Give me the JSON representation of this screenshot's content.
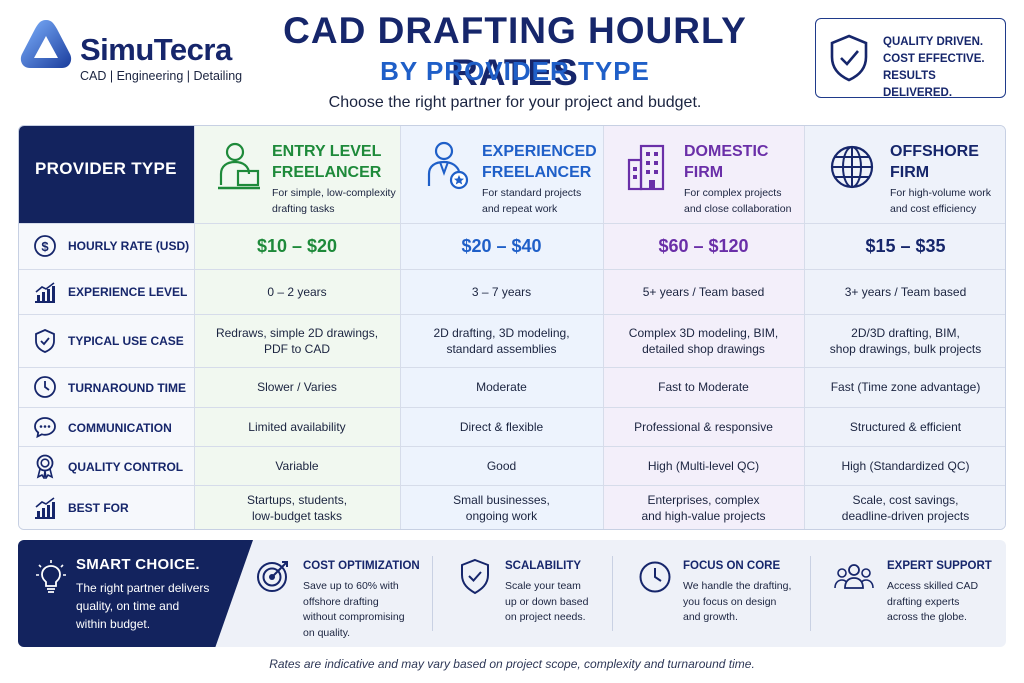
{
  "brand": {
    "name": "SimuTecra",
    "tagline": "CAD | Engineering | Detailing",
    "logo_icon": "triangle-loop-logo"
  },
  "header": {
    "title_line1": "CAD DRAFTING HOURLY RATES",
    "title_line2": "BY PROVIDER TYPE",
    "subtitle": "Choose the right partner for your project and budget."
  },
  "badge": {
    "icon": "shield-check-icon",
    "line1": "QUALITY DRIVEN.",
    "line2": "COST EFFECTIVE.",
    "line3": "RESULTS DELIVERED."
  },
  "colors": {
    "navy": "#13235e",
    "blue": "#1f5fc8",
    "green": "#1e8a3a",
    "purple": "#6a2fa8"
  },
  "table": {
    "corner_label": "PROVIDER TYPE",
    "columns": [
      {
        "name_line1": "ENTRY LEVEL",
        "name_line2": "FREELANCER",
        "desc_line1": "For simple, low-complexity",
        "desc_line2": "drafting tasks",
        "icon": "laptop-person-icon",
        "color": "#1e8a3a"
      },
      {
        "name_line1": "EXPERIENCED",
        "name_line2": "FREELANCER",
        "desc_line1": "For standard projects",
        "desc_line2": "and repeat work",
        "icon": "person-badge-icon",
        "color": "#1f5fc8"
      },
      {
        "name_line1": "DOMESTIC",
        "name_line2": "FIRM",
        "desc_line1": "For complex projects",
        "desc_line2": "and close collaboration",
        "icon": "building-icon",
        "color": "#6a2fa8"
      },
      {
        "name_line1": "OFFSHORE",
        "name_line2": "FIRM",
        "desc_line1": "For high-volume work",
        "desc_line2": "and cost efficiency",
        "icon": "globe-icon",
        "color": "#16266b"
      }
    ],
    "rows": [
      {
        "label": "HOURLY RATE (USD)",
        "icon": "dollar-icon",
        "values": [
          [
            "$10 – $20"
          ],
          [
            "$20 – $40"
          ],
          [
            "$60 – $120"
          ],
          [
            "$15 – $35"
          ]
        ]
      },
      {
        "label": "EXPERIENCE LEVEL",
        "icon": "bar-chart-icon",
        "values": [
          [
            "0 – 2 years"
          ],
          [
            "3 – 7 years"
          ],
          [
            "5+ years / Team based"
          ],
          [
            "3+ years / Team based"
          ]
        ]
      },
      {
        "label": "TYPICAL USE CASE",
        "icon": "shield-check-icon",
        "values": [
          [
            "Redraws, simple 2D drawings,",
            "PDF to CAD"
          ],
          [
            "2D drafting, 3D modeling,",
            "standard assemblies"
          ],
          [
            "Complex 3D modeling, BIM,",
            "detailed shop drawings"
          ],
          [
            "2D/3D drafting, BIM,",
            "shop drawings, bulk projects"
          ]
        ]
      },
      {
        "label": "TURNAROUND TIME",
        "icon": "clock-icon",
        "values": [
          [
            "Slower / Varies"
          ],
          [
            "Moderate"
          ],
          [
            "Fast to Moderate"
          ],
          [
            "Fast (Time zone advantage)"
          ]
        ]
      },
      {
        "label": "COMMUNICATION",
        "icon": "chat-icon",
        "values": [
          [
            "Limited availability"
          ],
          [
            "Direct & flexible"
          ],
          [
            "Professional & responsive"
          ],
          [
            "Structured & efficient"
          ]
        ]
      },
      {
        "label": "QUALITY CONTROL",
        "icon": "award-icon",
        "values": [
          [
            "Variable"
          ],
          [
            "Good"
          ],
          [
            "High (Multi-level QC)"
          ],
          [
            "High (Standardized QC)"
          ]
        ]
      },
      {
        "label": "BEST FOR",
        "icon": "growth-chart-icon",
        "values": [
          [
            "Startups, students,",
            "low-budget tasks"
          ],
          [
            "Small businesses,",
            "ongoing work"
          ],
          [
            "Enterprises, complex",
            "and high-value projects"
          ],
          [
            "Scale, cost savings,",
            "deadline-driven projects"
          ]
        ]
      }
    ]
  },
  "smart": {
    "icon": "lightbulb-icon",
    "title": "SMART CHOICE.",
    "desc_line1": "The right partner delivers",
    "desc_line2": "quality, on time and",
    "desc_line3": "within budget."
  },
  "features": [
    {
      "title": "COST OPTIMIZATION",
      "icon": "target-icon",
      "lines": [
        "Save up to 60% with",
        "offshore drafting",
        "without compromising",
        "on quality."
      ]
    },
    {
      "title": "SCALABILITY",
      "icon": "shield-check-icon",
      "lines": [
        "Scale your team",
        "up or down based",
        "on project needs."
      ]
    },
    {
      "title": "FOCUS ON CORE",
      "icon": "clock-icon",
      "lines": [
        "We handle the drafting,",
        "you focus on design",
        "and growth."
      ]
    },
    {
      "title": "EXPERT SUPPORT",
      "icon": "team-icon",
      "lines": [
        "Access skilled CAD",
        "drafting experts",
        "across the globe."
      ]
    }
  ],
  "footnote": "Rates are indicative and may vary based on project scope, complexity and turnaround time."
}
